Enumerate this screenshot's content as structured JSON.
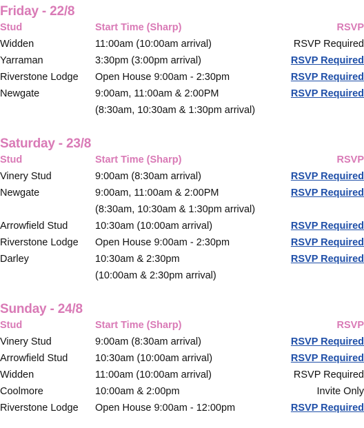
{
  "headers": {
    "stud": "Stud",
    "time": "Start Time (Sharp)",
    "rsvp": "RSVP"
  },
  "colors": {
    "accent": "#d97ab6",
    "link": "#1f4fa8",
    "text": "#111111"
  },
  "days": [
    {
      "title": "Friday - 22/8",
      "rows": [
        {
          "stud": "Widden",
          "time": "11:00am (10:00am arrival)",
          "rsvp": "RSVP Required",
          "link": false
        },
        {
          "stud": "Yarraman",
          "time": "3:30pm (3:00pm arrival)",
          "rsvp": "RSVP Required",
          "link": true
        },
        {
          "stud": "Riverstone Lodge",
          "time": "Open House 9:00am - 2:30pm",
          "rsvp": "RSVP Required",
          "link": true
        },
        {
          "stud": "Newgate",
          "time": "9:00am, 11:00am & 2:00PM",
          "time2": "(8:30am, 10:30am & 1:30pm arrival)",
          "rsvp": "RSVP Required",
          "link": true
        }
      ]
    },
    {
      "title": "Saturday - 23/8",
      "rows": [
        {
          "stud": "Vinery Stud",
          "time": "9:00am (8:30am arrival)",
          "rsvp": "RSVP Required",
          "link": true
        },
        {
          "stud": "Newgate",
          "time": "9:00am, 11:00am & 2:00PM",
          "time2": "(8:30am, 10:30am & 1:30pm arrival)",
          "rsvp": "RSVP Required",
          "link": true
        },
        {
          "stud": "Arrowfield Stud",
          "time": "10:30am (10:00am arrival)",
          "rsvp": "RSVP Required",
          "link": true
        },
        {
          "stud": "Riverstone Lodge",
          "time": "Open House 9:00am - 2:30pm",
          "rsvp": "RSVP Required",
          "link": true
        },
        {
          "stud": "Darley",
          "time": "10:30am & 2:30pm",
          "time2": "(10:00am & 2:30pm arrival)",
          "rsvp": "RSVP Required",
          "link": true
        }
      ]
    },
    {
      "title": "Sunday - 24/8",
      "rows": [
        {
          "stud": "Vinery Stud",
          "time": "9:00am (8:30am arrival)",
          "rsvp": "RSVP Required",
          "link": true
        },
        {
          "stud": "Arrowfield Stud",
          "time": "10:30am (10:00am arrival)",
          "rsvp": "RSVP Required",
          "link": true
        },
        {
          "stud": "Widden",
          "time": "11:00am (10:00am arrival)",
          "rsvp": "RSVP Required",
          "link": false
        },
        {
          "stud": "Coolmore",
          "time": "10:00am & 2:00pm",
          "rsvp": "Invite Only",
          "link": false
        },
        {
          "stud": "Riverstone Lodge",
          "time": "Open House 9:00am - 12:00pm",
          "rsvp": "RSVP Required",
          "link": true
        }
      ]
    }
  ]
}
